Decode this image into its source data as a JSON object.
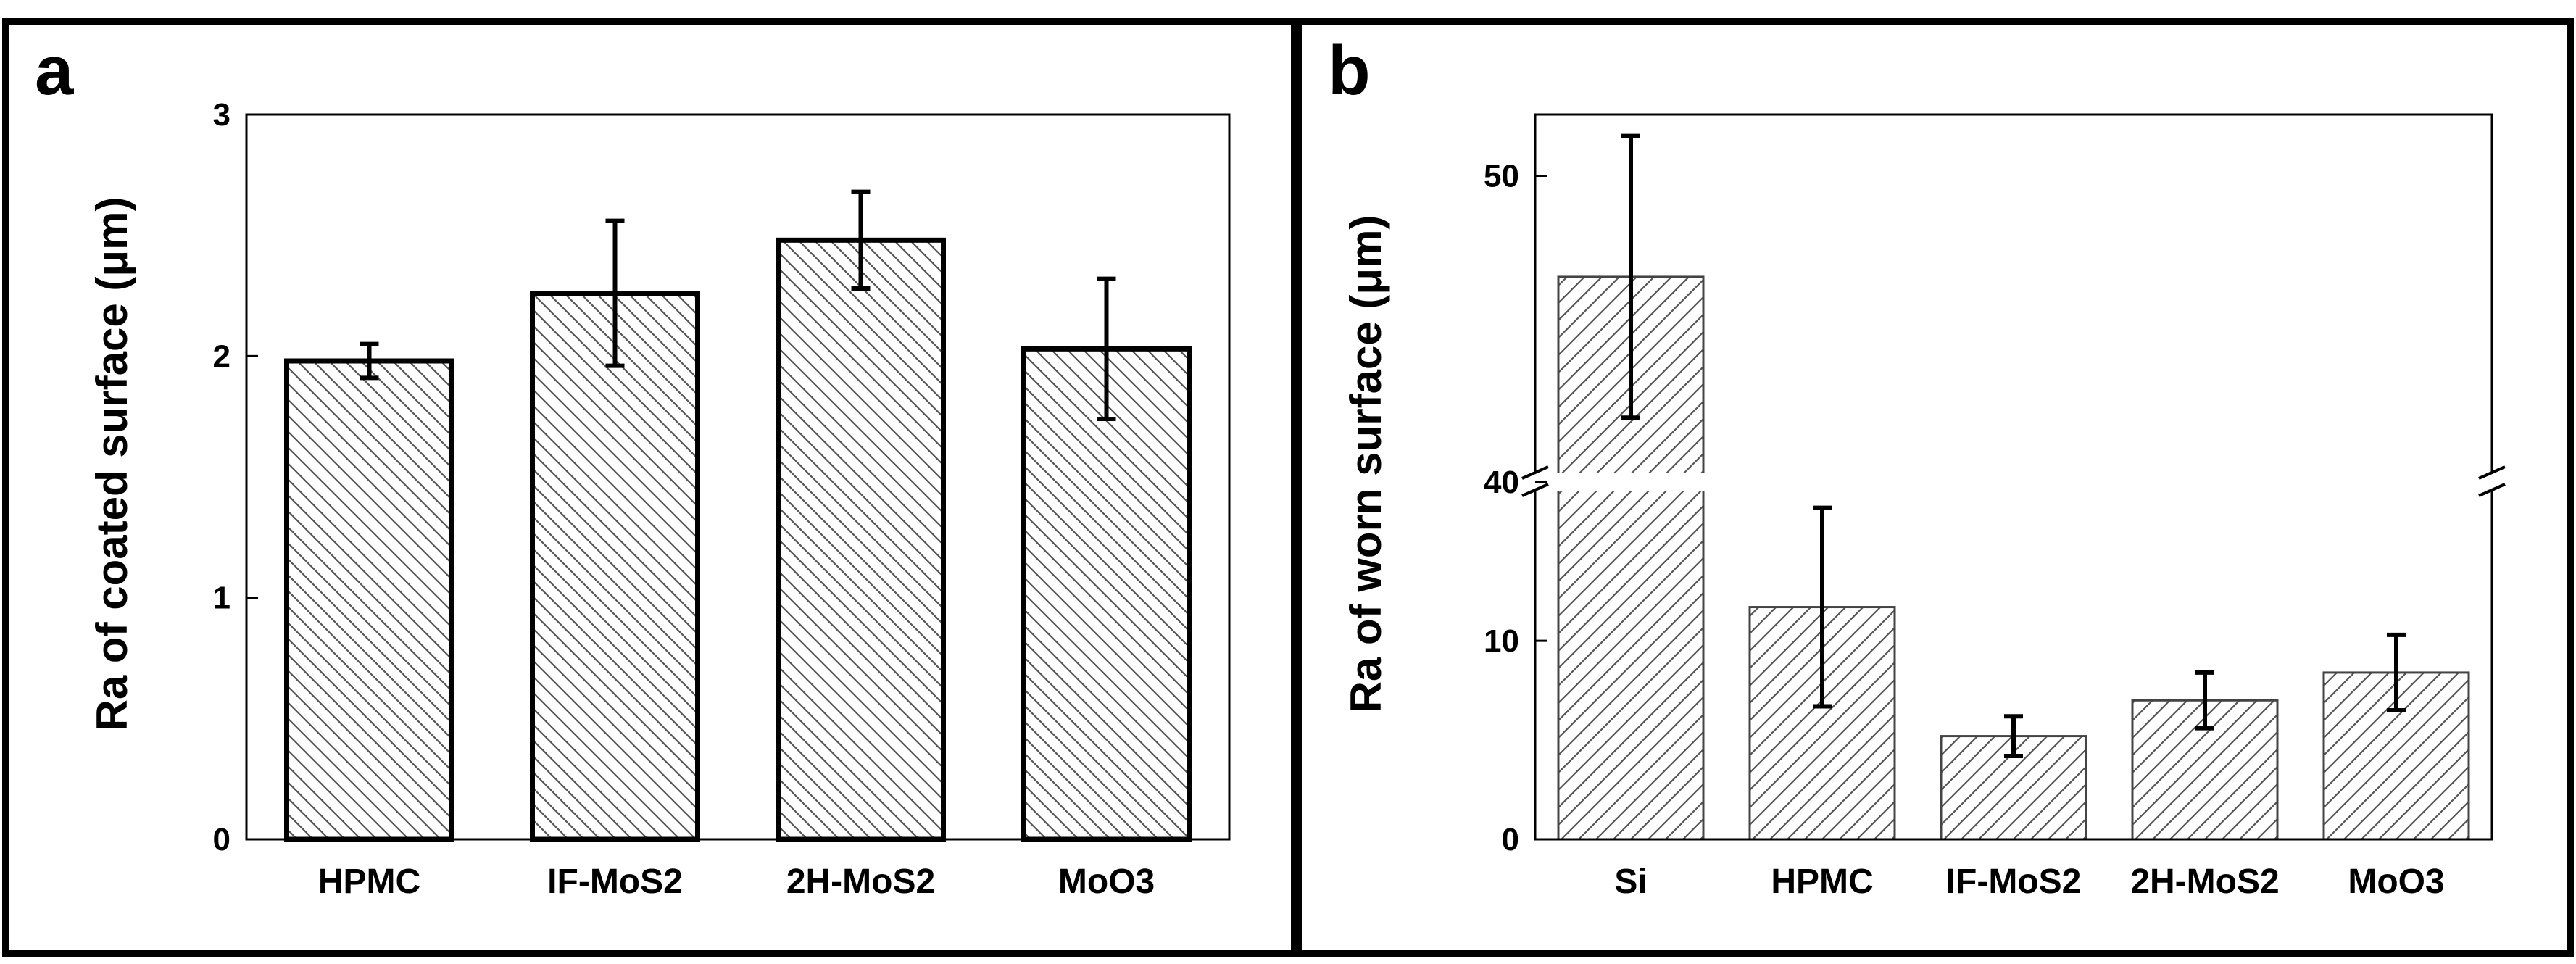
{
  "chart_data": [
    {
      "panel": "a",
      "type": "bar",
      "title": "",
      "xlabel": "",
      "ylabel": "Ra of coated surface (μm)",
      "categories": [
        "HPMC",
        "IF-MoS2",
        "2H-MoS2",
        "MoO3"
      ],
      "values": [
        1.98,
        2.26,
        2.48,
        2.03
      ],
      "errors": [
        0.07,
        0.3,
        0.2,
        0.29
      ],
      "ylim": [
        0,
        3
      ],
      "yticks": [
        0,
        1,
        2,
        3
      ],
      "ytick_labels": [
        "0",
        "1",
        "2",
        "3"
      ],
      "hatch": "backslash",
      "grid": false,
      "legend": "none"
    },
    {
      "panel": "b",
      "type": "bar",
      "title": "",
      "xlabel": "",
      "ylabel": "Ra of worn surface (μm)",
      "categories": [
        "Si",
        "HPMC",
        "IF-MoS2",
        "2H-MoS2",
        "MoO3"
      ],
      "values": [
        46.7,
        11.7,
        5.2,
        7.0,
        8.4
      ],
      "errors": [
        4.6,
        5.0,
        1.0,
        1.4,
        1.9
      ],
      "ylim": [
        0,
        52
      ],
      "axis_break": {
        "lower_max": 18,
        "upper_min": 40
      },
      "yticks": [
        0,
        10,
        40,
        50
      ],
      "ytick_labels": [
        "0",
        "10",
        "40",
        "50"
      ],
      "hatch": "slash",
      "grid": false,
      "legend": "none"
    }
  ]
}
